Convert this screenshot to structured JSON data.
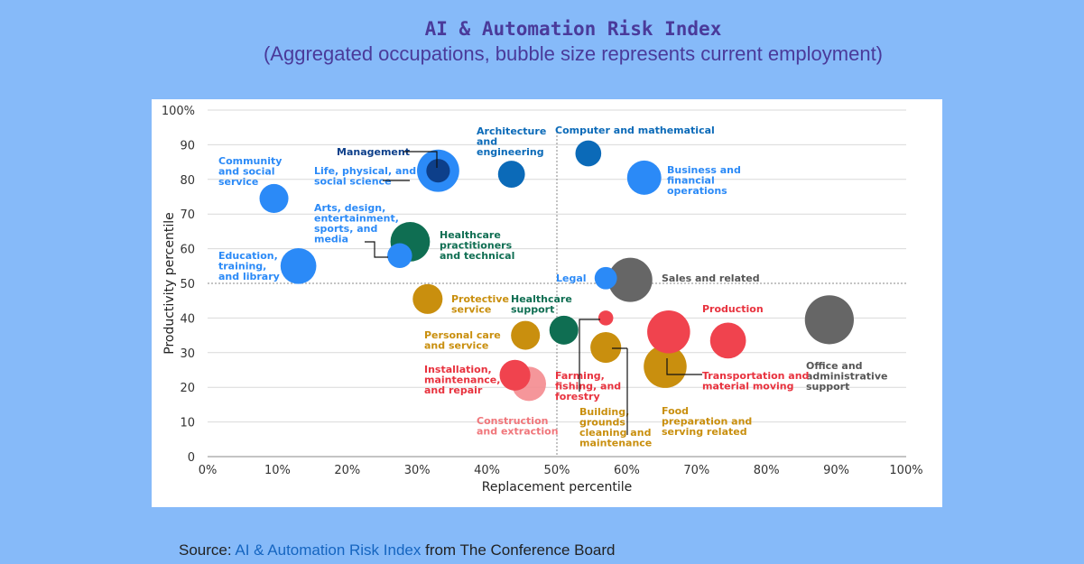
{
  "header": {
    "title": "AI & Automation Risk Index",
    "subtitle": "(Aggregated occupations, bubble size represents current employment)"
  },
  "source": {
    "prefix": "Source: ",
    "link": "AI & Automation Risk Index",
    "suffix": " from The Conference Board"
  },
  "chart_data": {
    "type": "scatter",
    "xlabel": "Replacement percentile",
    "ylabel": "Productivity percentile",
    "xlim": [
      0,
      100
    ],
    "ylim": [
      0,
      100
    ],
    "x_ticks": [
      "0%",
      "10%",
      "20%",
      "30%",
      "40%",
      "50%",
      "60%",
      "70%",
      "80%",
      "90%",
      "100%"
    ],
    "y_ticks": [
      "0",
      "10",
      "20",
      "30",
      "40",
      "50",
      "60",
      "70",
      "80",
      "90",
      "100%"
    ],
    "grid": true,
    "reference_lines": {
      "x": 50,
      "y": 50
    },
    "colors": {
      "blue": "#2b8af7",
      "dark_blue": "#0b6ab8",
      "navy": "#0d3f8a",
      "green": "#0f6e52",
      "gold": "#c98f0e",
      "red": "#f0434e",
      "pink": "#f48b8f",
      "gray": "#666666"
    },
    "points": [
      {
        "name": "Management",
        "x": 33,
        "y": 82.5,
        "size": 0.5,
        "color": "navy"
      },
      {
        "name": "Life, physical, and social science",
        "x": 33,
        "y": 82.5,
        "size": 1.6,
        "color": "blue"
      },
      {
        "name": "Community and social service",
        "x": 9.5,
        "y": 74.5,
        "size": 0.75,
        "color": "blue"
      },
      {
        "name": "Architecture and engineering",
        "x": 43.5,
        "y": 81.5,
        "size": 0.65,
        "color": "dark_blue"
      },
      {
        "name": "Computer and mathematical",
        "x": 54.5,
        "y": 87.5,
        "size": 0.6,
        "color": "dark_blue"
      },
      {
        "name": "Business and financial operations",
        "x": 62.5,
        "y": 80.5,
        "size": 1.05,
        "color": "blue"
      },
      {
        "name": "Healthcare practitioners and technical",
        "x": 29,
        "y": 62,
        "size": 1.4,
        "color": "green"
      },
      {
        "name": "Arts, design, entertainment, sports, and media",
        "x": 27.5,
        "y": 58,
        "size": 0.55,
        "color": "blue"
      },
      {
        "name": "Education, training, and library",
        "x": 13,
        "y": 55,
        "size": 1.15,
        "color": "blue"
      },
      {
        "name": "Sales and related",
        "x": 60.5,
        "y": 51,
        "size": 1.75,
        "color": "gray"
      },
      {
        "name": "Legal",
        "x": 57,
        "y": 51.5,
        "size": 0.45,
        "color": "blue"
      },
      {
        "name": "Protective service",
        "x": 31.5,
        "y": 45.5,
        "size": 0.8,
        "color": "gold"
      },
      {
        "name": "Office and administrative support",
        "x": 89,
        "y": 39.5,
        "size": 2.15,
        "color": "gray"
      },
      {
        "name": "Healthcare support",
        "x": 51,
        "y": 36.5,
        "size": 0.75,
        "color": "green"
      },
      {
        "name": "Personal care and service",
        "x": 45.5,
        "y": 35,
        "size": 0.75,
        "color": "gold"
      },
      {
        "name": "Farming, fishing, and forestry",
        "x": 57,
        "y": 40,
        "size": 0.2,
        "color": "red"
      },
      {
        "name": "Production",
        "x": 74.5,
        "y": 33.5,
        "size": 1.15,
        "color": "red"
      },
      {
        "name": "Building, grounds cleaning and maintenance",
        "x": 57,
        "y": 31.5,
        "size": 0.85,
        "color": "gold"
      },
      {
        "name": "Food preparation and serving related",
        "x": 65.5,
        "y": 26,
        "size": 1.65,
        "color": "gold"
      },
      {
        "name": "Transportation and material moving",
        "x": 66,
        "y": 36,
        "size": 1.65,
        "color": "red"
      },
      {
        "name": "Construction and extraction",
        "x": 46,
        "y": 21,
        "size": 1.05,
        "color": "pink"
      },
      {
        "name": "Installation, maintenance, and repair",
        "x": 44,
        "y": 23.5,
        "size": 0.85,
        "color": "red"
      }
    ]
  }
}
